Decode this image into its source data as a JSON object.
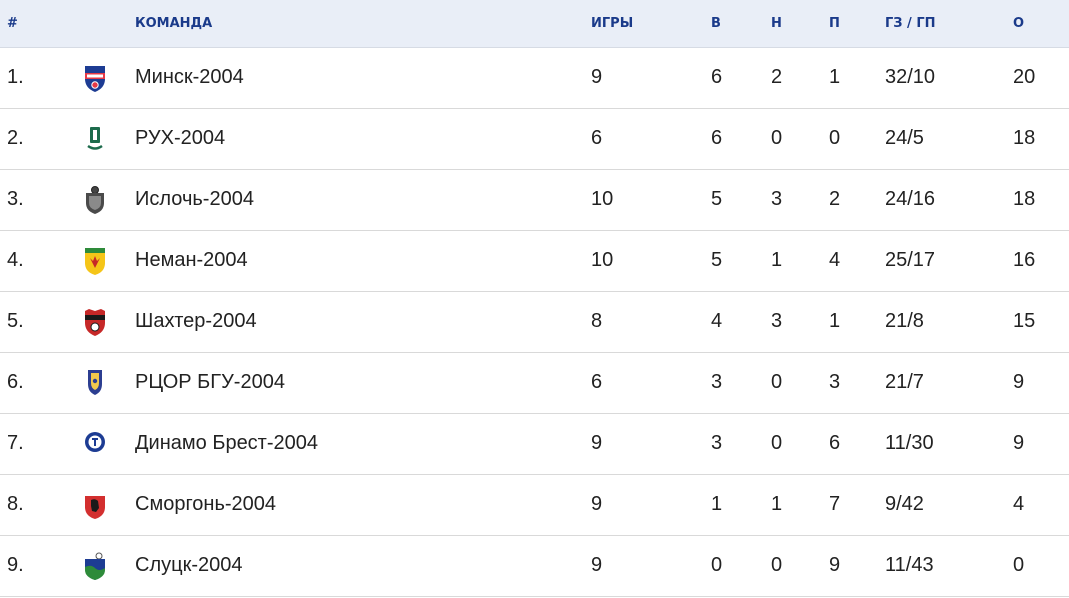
{
  "header": {
    "pos": "#",
    "team": "КОМАНДА",
    "games": "ИГРЫ",
    "wins": "В",
    "draws": "Н",
    "losses": "П",
    "goals": "ГЗ / ГП",
    "points": "О"
  },
  "rows": [
    {
      "pos": "1.",
      "team": "Минск-2004",
      "logo": "minsk-crest-icon",
      "games": "9",
      "wins": "6",
      "draws": "2",
      "losses": "1",
      "goals": "32/10",
      "points": "20"
    },
    {
      "pos": "2.",
      "team": "РУХ-2004",
      "logo": "rukh-crest-icon",
      "games": "6",
      "wins": "6",
      "draws": "0",
      "losses": "0",
      "goals": "24/5",
      "points": "18"
    },
    {
      "pos": "3.",
      "team": "Ислочь-2004",
      "logo": "isloch-crest-icon",
      "games": "10",
      "wins": "5",
      "draws": "3",
      "losses": "2",
      "goals": "24/16",
      "points": "18"
    },
    {
      "pos": "4.",
      "team": "Неман-2004",
      "logo": "neman-crest-icon",
      "games": "10",
      "wins": "5",
      "draws": "1",
      "losses": "4",
      "goals": "25/17",
      "points": "16"
    },
    {
      "pos": "5.",
      "team": "Шахтер-2004",
      "logo": "shakhtyor-crest-icon",
      "games": "8",
      "wins": "4",
      "draws": "3",
      "losses": "1",
      "goals": "21/8",
      "points": "15"
    },
    {
      "pos": "6.",
      "team": "РЦОР БГУ-2004",
      "logo": "rcor-bgu-crest-icon",
      "games": "6",
      "wins": "3",
      "draws": "0",
      "losses": "3",
      "goals": "21/7",
      "points": "9"
    },
    {
      "pos": "7.",
      "team": "Динамо Брест-2004",
      "logo": "dinamo-brest-crest-icon",
      "games": "9",
      "wins": "3",
      "draws": "0",
      "losses": "6",
      "goals": "11/30",
      "points": "9"
    },
    {
      "pos": "8.",
      "team": "Сморгонь-2004",
      "logo": "smorgon-crest-icon",
      "games": "9",
      "wins": "1",
      "draws": "1",
      "losses": "7",
      "goals": "9/42",
      "points": "4"
    },
    {
      "pos": "9.",
      "team": "Слуцк-2004",
      "logo": "slutsk-crest-icon",
      "games": "9",
      "wins": "0",
      "draws": "0",
      "losses": "9",
      "goals": "11/43",
      "points": "0"
    }
  ],
  "colors": {
    "header_bg": "#e9eef7",
    "header_text": "#1a3a8a",
    "row_border": "#d9d9d9"
  }
}
